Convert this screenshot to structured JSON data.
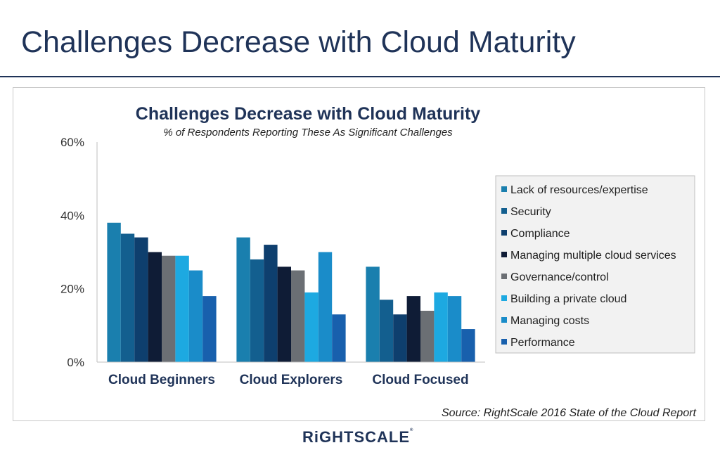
{
  "slide": {
    "title": "Challenges Decrease with Cloud Maturity",
    "logo_text": "RiGHTSCALE"
  },
  "colors": {
    "title": "#1f3358",
    "axis_text": "#333333"
  },
  "chart_data": {
    "type": "bar",
    "title": "Challenges Decrease with Cloud Maturity",
    "subtitle": "% of Respondents Reporting These As Significant Challenges",
    "source": "Source: RightScale 2016 State of the Cloud Report",
    "categories": [
      "Cloud Beginners",
      "Cloud Explorers",
      "Cloud Focused"
    ],
    "ylim": [
      0,
      60
    ],
    "yticks": [
      0,
      20,
      40,
      60
    ],
    "ytick_labels": [
      "0%",
      "20%",
      "40%",
      "60%"
    ],
    "xlabel": "",
    "ylabel": "",
    "grid": false,
    "legend_position": "right",
    "series": [
      {
        "name": "Lack of resources/expertise",
        "color": "#1a7fae",
        "values": [
          38,
          34,
          26
        ]
      },
      {
        "name": "Security",
        "color": "#135f8f",
        "values": [
          35,
          28,
          17
        ]
      },
      {
        "name": "Compliance",
        "color": "#0e3f6e",
        "values": [
          34,
          32,
          13
        ]
      },
      {
        "name": "Managing multiple cloud services",
        "color": "#0f1c36",
        "values": [
          30,
          26,
          18
        ]
      },
      {
        "name": "Governance/control",
        "color": "#6b6f74",
        "values": [
          29,
          25,
          14
        ]
      },
      {
        "name": "Building a private cloud",
        "color": "#1da9e1",
        "values": [
          29,
          19,
          19
        ]
      },
      {
        "name": "Managing costs",
        "color": "#1a8cc9",
        "values": [
          25,
          30,
          18
        ]
      },
      {
        "name": "Performance",
        "color": "#1860ad",
        "values": [
          18,
          13,
          9
        ]
      }
    ]
  }
}
